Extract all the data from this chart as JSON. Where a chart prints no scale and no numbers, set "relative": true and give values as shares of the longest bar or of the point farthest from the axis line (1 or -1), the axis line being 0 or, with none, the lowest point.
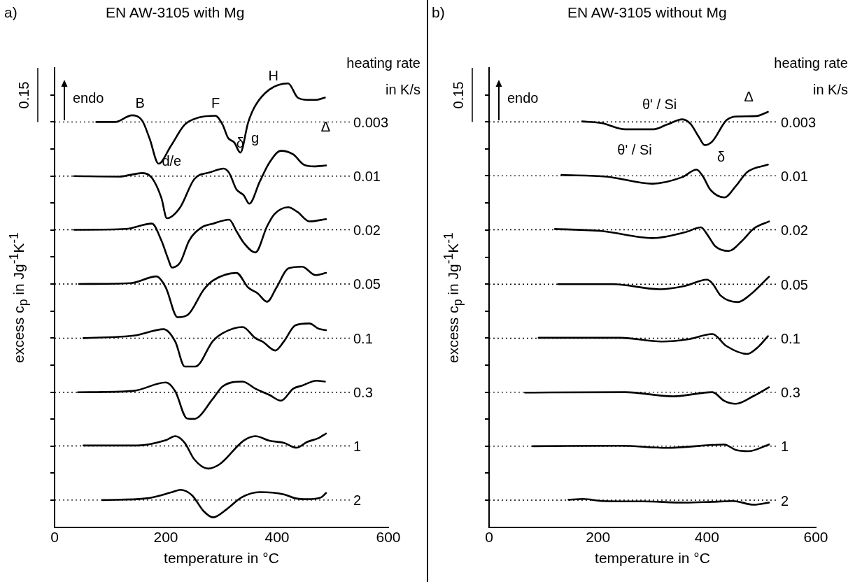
{
  "chart_data": [
    {
      "type": "line",
      "title": "EN AW-3105 with Mg",
      "xlabel": "temperature in °C",
      "ylabel": "excess c$_{p}$ in Jg$^{-1}$K$^{-1}$",
      "xlim": [
        0,
        600
      ],
      "xticks": [
        0,
        200,
        400,
        600
      ],
      "relative": true,
      "tick_labels": "x",
      "legend": false,
      "marker": "none",
      "line_style": "solid",
      "ref_lines": [
        {
          "axis": "y",
          "value": 0.913,
          "line_style": "dotted",
          "color": "#000000"
        },
        {
          "axis": "y",
          "value": 0.791,
          "line_style": "dotted",
          "color": "#000000"
        },
        {
          "axis": "y",
          "value": 0.67,
          "line_style": "dotted",
          "color": "#000000"
        },
        {
          "axis": "y",
          "value": 0.548,
          "line_style": "dotted",
          "color": "#000000"
        },
        {
          "axis": "y",
          "value": 0.426,
          "line_style": "dotted",
          "color": "#000000"
        },
        {
          "axis": "y",
          "value": 0.304,
          "line_style": "dotted",
          "color": "#000000"
        },
        {
          "axis": "y",
          "value": 0.183,
          "line_style": "dotted",
          "color": "#000000"
        },
        {
          "axis": "y",
          "value": 0.061,
          "line_style": "dotted",
          "color": "#000000"
        }
      ],
      "annotations": [
        "a)",
        "heating rate in K/s",
        "endo",
        "0.15",
        "B",
        "d/e",
        "F",
        "δ",
        "g",
        "H",
        "Δ"
      ],
      "series": [
        {
          "name": "0.003",
          "color": "#000000",
          "x": [
            75,
            109,
            139,
            158,
            171,
            187,
            209,
            234,
            259,
            289,
            302,
            312,
            323,
            334,
            348,
            361,
            386,
            420,
            437,
            454,
            471,
            486
          ],
          "values": [
            0.913,
            0.913,
            0.928,
            0.915,
            0.875,
            0.819,
            0.859,
            0.907,
            0.923,
            0.927,
            0.907,
            0.877,
            0.867,
            0.844,
            0.912,
            0.95,
            0.986,
            1.0,
            0.968,
            0.963,
            0.963,
            0.968
          ]
        },
        {
          "name": "0.01",
          "color": "#000000",
          "x": [
            35,
            116,
            158,
            175,
            192,
            202,
            226,
            251,
            281,
            304,
            314,
            327,
            340,
            350,
            369,
            386,
            407,
            429,
            448,
            467,
            488
          ],
          "values": [
            0.791,
            0.79,
            0.798,
            0.787,
            0.742,
            0.696,
            0.721,
            0.784,
            0.8,
            0.808,
            0.798,
            0.761,
            0.748,
            0.729,
            0.779,
            0.821,
            0.848,
            0.84,
            0.817,
            0.813,
            0.815
          ]
        },
        {
          "name": "0.02",
          "color": "#000000",
          "x": [
            35,
            128,
            175,
            192,
            204,
            211,
            226,
            242,
            264,
            285,
            314,
            327,
            340,
            361,
            382,
            395,
            420,
            437,
            458,
            488
          ],
          "values": [
            0.67,
            0.672,
            0.684,
            0.646,
            0.605,
            0.585,
            0.597,
            0.646,
            0.675,
            0.684,
            0.693,
            0.667,
            0.641,
            0.619,
            0.678,
            0.705,
            0.721,
            0.71,
            0.689,
            0.694
          ]
        },
        {
          "name": "0.05",
          "color": "#000000",
          "x": [
            44,
            137,
            183,
            200,
            221,
            240,
            268,
            285,
            327,
            348,
            365,
            382,
            399,
            420,
            445,
            469,
            488
          ],
          "values": [
            0.548,
            0.55,
            0.565,
            0.54,
            0.473,
            0.479,
            0.535,
            0.556,
            0.573,
            0.54,
            0.527,
            0.508,
            0.54,
            0.583,
            0.587,
            0.568,
            0.573
          ]
        },
        {
          "name": "0.1",
          "color": "#000000",
          "x": [
            52,
            145,
            196,
            217,
            234,
            253,
            285,
            302,
            338,
            361,
            374,
            397,
            412,
            433,
            458,
            475,
            488
          ],
          "values": [
            0.426,
            0.432,
            0.446,
            0.418,
            0.362,
            0.362,
            0.42,
            0.437,
            0.451,
            0.426,
            0.418,
            0.398,
            0.418,
            0.455,
            0.459,
            0.447,
            0.444
          ]
        },
        {
          "name": "0.3",
          "color": "#000000",
          "x": [
            42,
            141,
            200,
            217,
            238,
            251,
            285,
            302,
            338,
            361,
            386,
            407,
            429,
            445,
            471,
            486
          ],
          "values": [
            0.304,
            0.307,
            0.326,
            0.306,
            0.245,
            0.244,
            0.29,
            0.317,
            0.328,
            0.312,
            0.298,
            0.285,
            0.312,
            0.319,
            0.33,
            0.328
          ]
        },
        {
          "name": "1",
          "color": "#000000",
          "x": [
            52,
            149,
            200,
            217,
            234,
            251,
            276,
            297,
            340,
            361,
            386,
            412,
            435,
            454,
            475,
            488
          ],
          "values": [
            0.184,
            0.184,
            0.196,
            0.205,
            0.19,
            0.153,
            0.132,
            0.142,
            0.195,
            0.205,
            0.195,
            0.19,
            0.179,
            0.192,
            0.201,
            0.211
          ]
        },
        {
          "name": "2",
          "color": "#000000",
          "x": [
            86,
            166,
            209,
            226,
            247,
            268,
            285,
            310,
            336,
            369,
            412,
            433,
            454,
            479,
            488
          ],
          "values": [
            0.061,
            0.065,
            0.078,
            0.084,
            0.072,
            0.036,
            0.022,
            0.041,
            0.067,
            0.079,
            0.074,
            0.065,
            0.063,
            0.067,
            0.077
          ]
        }
      ]
    },
    {
      "type": "line",
      "title": "EN AW-3105 without Mg",
      "xlabel": "temperature in °C",
      "ylabel": "excess c$_{p}$ in Jg$^{-1}$K$^{-1}$",
      "xlim": [
        0,
        600
      ],
      "xticks": [
        0,
        200,
        400,
        600
      ],
      "relative": true,
      "tick_labels": "x",
      "legend": false,
      "marker": "none",
      "line_style": "solid",
      "ref_lines": [
        {
          "axis": "y",
          "value": 0.976,
          "line_style": "dotted",
          "color": "#000000"
        },
        {
          "axis": "y",
          "value": 0.846,
          "line_style": "dotted",
          "color": "#000000"
        },
        {
          "axis": "y",
          "value": 0.716,
          "line_style": "dotted",
          "color": "#000000"
        },
        {
          "axis": "y",
          "value": 0.585,
          "line_style": "dotted",
          "color": "#000000"
        },
        {
          "axis": "y",
          "value": 0.455,
          "line_style": "dotted",
          "color": "#000000"
        },
        {
          "axis": "y",
          "value": 0.325,
          "line_style": "dotted",
          "color": "#000000"
        },
        {
          "axis": "y",
          "value": 0.195,
          "line_style": "dotted",
          "color": "#000000"
        },
        {
          "axis": "y",
          "value": 0.065,
          "line_style": "dotted",
          "color": "#000000"
        }
      ],
      "annotations": [
        "b)",
        "heating rate in K/s",
        "endo",
        "0.15",
        "θ' / Si",
        "θ' / Si",
        "δ",
        "Δ"
      ],
      "series": [
        {
          "name": "0.003",
          "color": "#000000",
          "x": [
            171,
            207,
            250,
            302,
            326,
            355,
            370,
            385,
            396,
            410,
            436,
            457,
            491,
            512
          ],
          "values": [
            0.977,
            0.973,
            0.958,
            0.958,
            0.969,
            0.982,
            0.971,
            0.94,
            0.92,
            0.929,
            0.98,
            0.989,
            0.99,
            1.0
          ]
        },
        {
          "name": "0.01",
          "color": "#000000",
          "x": [
            133,
            216,
            300,
            355,
            381,
            393,
            406,
            432,
            453,
            474,
            512
          ],
          "values": [
            0.848,
            0.844,
            0.827,
            0.843,
            0.861,
            0.844,
            0.813,
            0.794,
            0.821,
            0.855,
            0.873
          ]
        },
        {
          "name": "0.02",
          "color": "#000000",
          "x": [
            121,
            207,
            300,
            360,
            389,
            402,
            415,
            440,
            465,
            486,
            514
          ],
          "values": [
            0.718,
            0.713,
            0.696,
            0.71,
            0.722,
            0.702,
            0.677,
            0.665,
            0.69,
            0.719,
            0.736
          ]
        },
        {
          "name": "0.05",
          "color": "#000000",
          "x": [
            127,
            228,
            313,
            360,
            400,
            410,
            425,
            457,
            478,
            514
          ],
          "values": [
            0.585,
            0.585,
            0.573,
            0.581,
            0.596,
            0.587,
            0.558,
            0.542,
            0.558,
            0.603
          ]
        },
        {
          "name": "0.1",
          "color": "#000000",
          "x": [
            91,
            241,
            317,
            368,
            410,
            436,
            474,
            495,
            512
          ],
          "values": [
            0.456,
            0.456,
            0.447,
            0.453,
            0.465,
            0.436,
            0.417,
            0.435,
            0.46
          ]
        },
        {
          "name": "0.3",
          "color": "#000000",
          "x": [
            66,
            250,
            338,
            410,
            432,
            453,
            486,
            514
          ],
          "values": [
            0.324,
            0.325,
            0.315,
            0.325,
            0.304,
            0.297,
            0.316,
            0.337
          ]
        },
        {
          "name": "1",
          "color": "#000000",
          "x": [
            80,
            241,
            326,
            432,
            453,
            476,
            514
          ],
          "values": [
            0.195,
            0.196,
            0.191,
            0.199,
            0.186,
            0.183,
            0.199
          ]
        },
        {
          "name": "2",
          "color": "#000000",
          "x": [
            146,
            173,
            207,
            283,
            360,
            410,
            448,
            486,
            514
          ],
          "values": [
            0.066,
            0.068,
            0.063,
            0.062,
            0.059,
            0.061,
            0.063,
            0.054,
            0.059
          ]
        }
      ]
    }
  ]
}
